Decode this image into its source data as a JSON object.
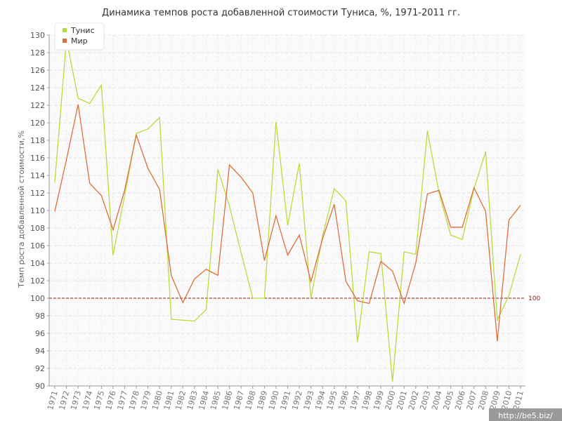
{
  "chart_data": {
    "type": "line",
    "title": "Динамика темпов роста добавленной стоимости Туниса, %, 1971-2011 гг.",
    "ylabel": "Темп роста добавленной стоимости,%",
    "xlabel": "",
    "ylim": [
      90,
      130
    ],
    "y_ticks": [
      90,
      92,
      94,
      96,
      98,
      100,
      102,
      104,
      106,
      108,
      110,
      112,
      114,
      116,
      118,
      120,
      122,
      124,
      126,
      128,
      130
    ],
    "x": [
      1971,
      1972,
      1973,
      1974,
      1975,
      1976,
      1977,
      1978,
      1979,
      1980,
      1981,
      1982,
      1983,
      1984,
      1985,
      1986,
      1987,
      1988,
      1989,
      1990,
      1991,
      1992,
      1993,
      1994,
      1995,
      1996,
      1997,
      1998,
      1999,
      2000,
      2001,
      2002,
      2003,
      2004,
      2005,
      2006,
      2007,
      2008,
      2009,
      2010,
      2011
    ],
    "series": [
      {
        "name": "Тунис",
        "color": "#b8dc3c",
        "values": [
          113.2,
          129.5,
          122.8,
          122.2,
          124.3,
          104.9,
          111.7,
          118.8,
          119.3,
          120.6,
          97.6,
          97.5,
          97.4,
          98.7,
          114.7,
          110.5,
          105.2,
          100.0,
          100.0,
          120.1,
          108.3,
          115.4,
          100.0,
          107.1,
          112.5,
          111.1,
          95.0,
          105.3,
          105.1,
          90.5,
          105.3,
          105.0,
          119.1,
          112.0,
          107.2,
          106.7,
          112.5,
          116.7,
          97.5,
          100.3,
          105.0
        ]
      },
      {
        "name": "Мир",
        "color": "#e06e3c",
        "values": [
          109.9,
          115.8,
          122.1,
          113.1,
          111.7,
          107.8,
          112.3,
          118.6,
          114.8,
          112.4,
          102.6,
          99.5,
          102.2,
          103.3,
          102.6,
          115.2,
          113.8,
          112.0,
          104.3,
          109.4,
          104.9,
          107.2,
          101.9,
          106.8,
          110.7,
          101.9,
          99.7,
          99.4,
          104.2,
          103.1,
          99.4,
          104.0,
          111.9,
          112.3,
          108.1,
          108.1,
          112.6,
          109.9,
          95.1,
          108.9,
          110.6
        ]
      }
    ],
    "reference_line": {
      "value": 100,
      "label": "100",
      "color": "#8b1a1a"
    },
    "grid": true,
    "legend_position": "top-left"
  },
  "watermark": {
    "text": "http://be5.biz/"
  }
}
